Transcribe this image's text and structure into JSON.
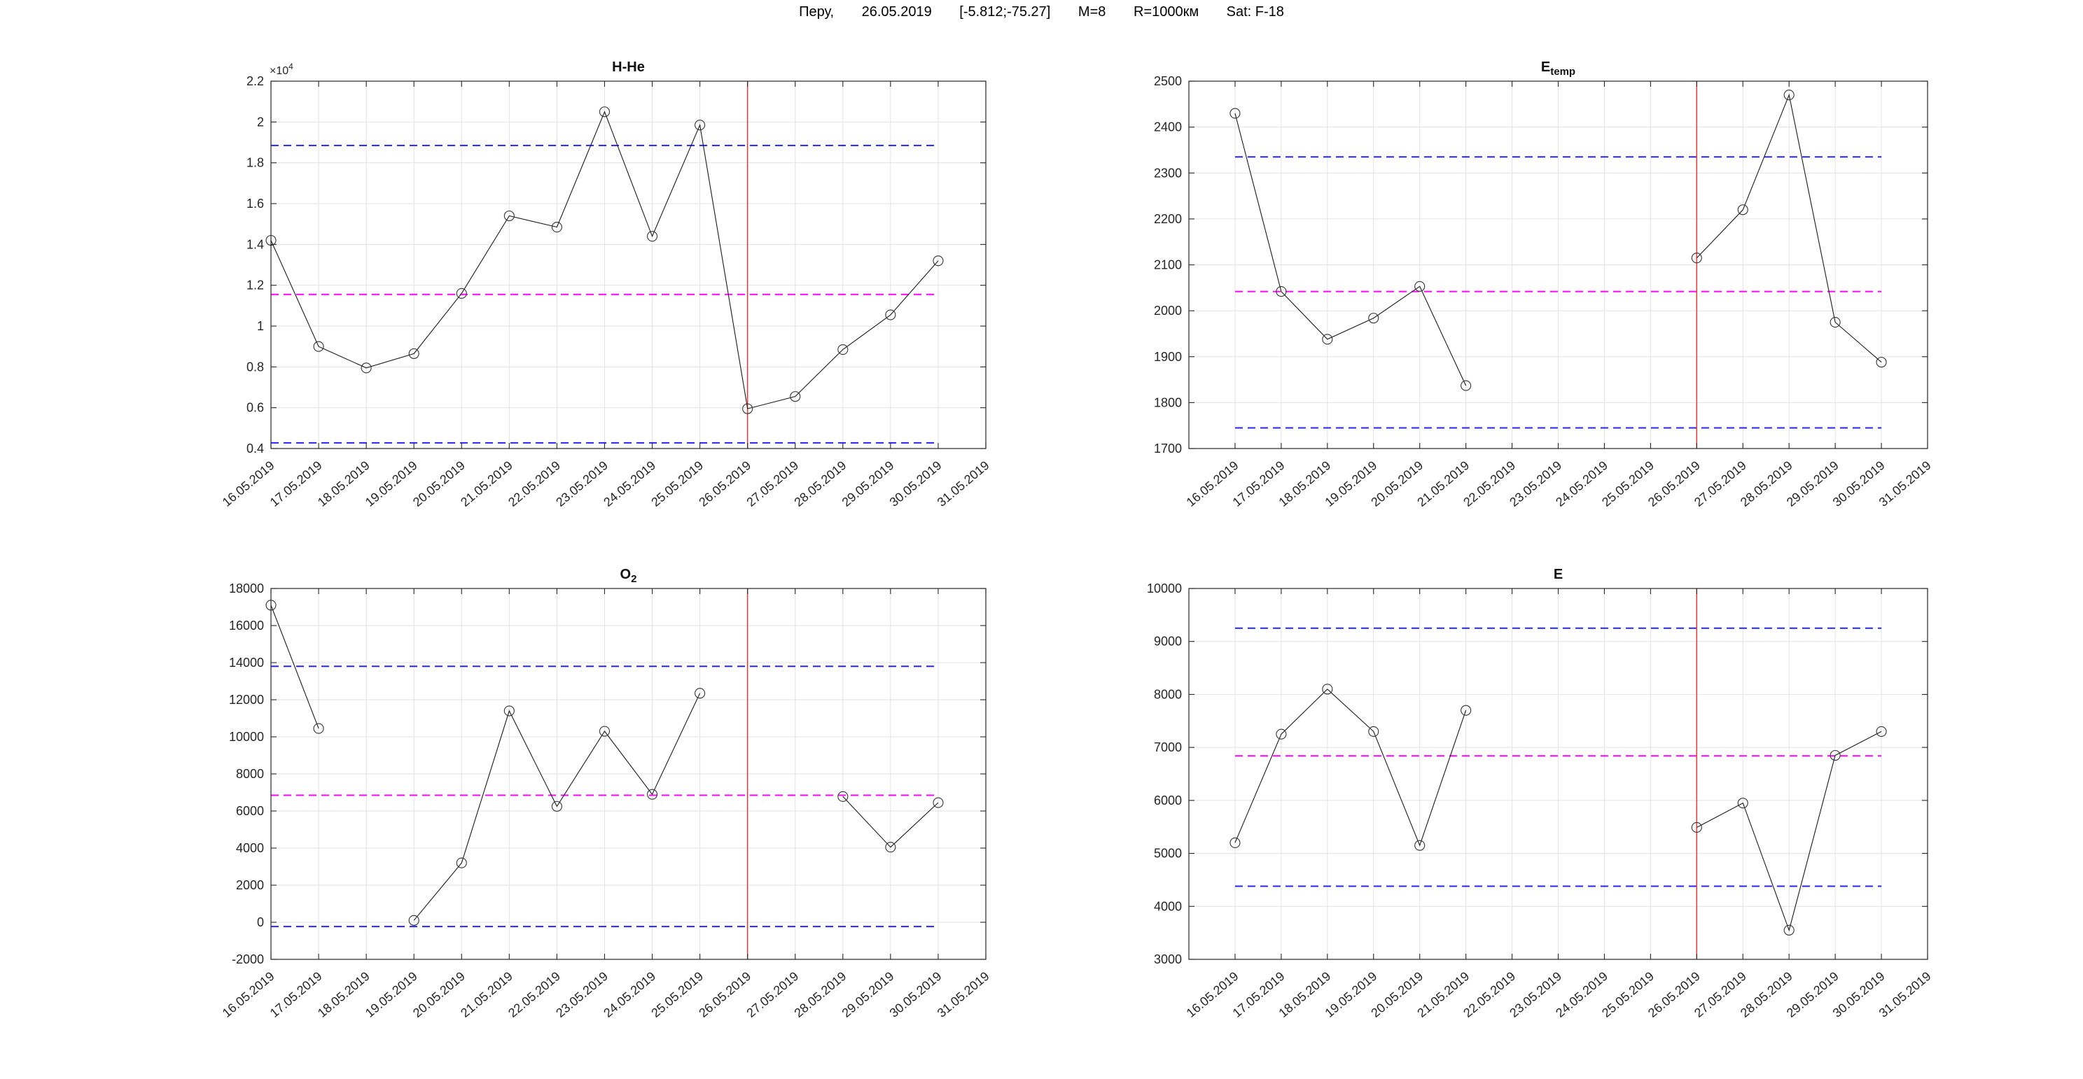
{
  "header": {
    "parts": [
      "Перу,",
      "26.05.2019",
      "[-5.812;-75.27]",
      "M=8",
      "R=1000км",
      "Sat: F-18"
    ]
  },
  "x_axis": {
    "tick_labels": [
      "16.05.2019",
      "17.05.2019",
      "18.05.2019",
      "19.05.2019",
      "20.05.2019",
      "21.05.2019",
      "22.05.2019",
      "23.05.2019",
      "24.05.2019",
      "25.05.2019",
      "26.05.2019",
      "27.05.2019",
      "28.05.2019",
      "29.05.2019",
      "30.05.2019",
      "31.05.2019"
    ]
  },
  "colors": {
    "series": "#1a1a1a",
    "marker": "#333333",
    "grid": "#e2e2e2",
    "axis": "#262626",
    "bound_dashed": "#2424ff",
    "mean_dashed": "#ff00ff",
    "event_line": "#ff2a2a"
  },
  "chart_data": [
    {
      "id": "h_he",
      "type": "line",
      "title": {
        "text": "H-He",
        "sub": ""
      },
      "xlim": [
        16,
        31
      ],
      "ylim": [
        4000,
        22000
      ],
      "yticks": {
        "values": [
          4000,
          6000,
          8000,
          10000,
          12000,
          14000,
          16000,
          18000,
          20000,
          22000
        ],
        "labels": [
          "0.4",
          "0.6",
          "0.8",
          "1",
          "1.2",
          "1.4",
          "1.6",
          "1.8",
          "2",
          "2.2"
        ]
      },
      "exponent": {
        "base": "×10",
        "power": "4"
      },
      "start_day": 16,
      "values": [
        14200,
        9000,
        7950,
        8650,
        11600,
        15400,
        14850,
        20500,
        14400,
        19850,
        5950,
        6550,
        8850,
        10550,
        13200
      ],
      "bounds": {
        "upper": 18850,
        "mean": 11550,
        "lower": 4280
      },
      "event_day": 26,
      "event_date": "26.05.2019"
    },
    {
      "id": "e_temp",
      "type": "line",
      "title": {
        "text": "E",
        "sub": "temp"
      },
      "xlim": [
        15,
        31
      ],
      "ylim": [
        1700,
        2500
      ],
      "yticks": {
        "values": [
          1700,
          1800,
          1900,
          2000,
          2100,
          2200,
          2300,
          2400,
          2500
        ],
        "labels": [
          "1700",
          "1800",
          "1900",
          "2000",
          "2100",
          "2200",
          "2300",
          "2400",
          "2500"
        ]
      },
      "exponent": null,
      "start_day": 16,
      "values": [
        2430,
        2042,
        1938,
        1984,
        2053,
        1837,
        null,
        null,
        null,
        null,
        2115,
        2220,
        2470,
        1975,
        1888
      ],
      "bounds": {
        "upper": 2335,
        "mean": 2042,
        "lower": 1745
      },
      "event_day": 26,
      "event_date": "26.05.2019"
    },
    {
      "id": "o2",
      "type": "line",
      "title": {
        "text": "O",
        "sub": "2"
      },
      "xlim": [
        16,
        31
      ],
      "ylim": [
        -2000,
        18000
      ],
      "yticks": {
        "values": [
          -2000,
          0,
          2000,
          4000,
          6000,
          8000,
          10000,
          12000,
          14000,
          16000,
          18000
        ],
        "labels": [
          "-2000",
          "0",
          "2000",
          "4000",
          "6000",
          "8000",
          "10000",
          "12000",
          "14000",
          "16000",
          "18000"
        ]
      },
      "exponent": null,
      "start_day": 16,
      "values": [
        17100,
        10450,
        null,
        100,
        3200,
        11400,
        6250,
        10300,
        6900,
        12350,
        null,
        null,
        6780,
        4050,
        6450
      ],
      "bounds": {
        "upper": 13800,
        "mean": 6850,
        "lower": -230
      },
      "event_day": 26,
      "event_date": "26.05.2019"
    },
    {
      "id": "e",
      "type": "line",
      "title": {
        "text": "E",
        "sub": ""
      },
      "xlim": [
        15,
        31
      ],
      "ylim": [
        3000,
        10000
      ],
      "yticks": {
        "values": [
          3000,
          4000,
          5000,
          6000,
          7000,
          8000,
          9000,
          10000
        ],
        "labels": [
          "3000",
          "4000",
          "5000",
          "6000",
          "7000",
          "8000",
          "9000",
          "10000"
        ]
      },
      "exponent": null,
      "start_day": 16,
      "values": [
        5200,
        7250,
        8100,
        7300,
        5150,
        7700,
        null,
        null,
        null,
        null,
        5490,
        5950,
        3550,
        6850,
        7300
      ],
      "bounds": {
        "upper": 9250,
        "mean": 6840,
        "lower": 4380
      },
      "event_day": 26,
      "event_date": "26.05.2019"
    }
  ]
}
